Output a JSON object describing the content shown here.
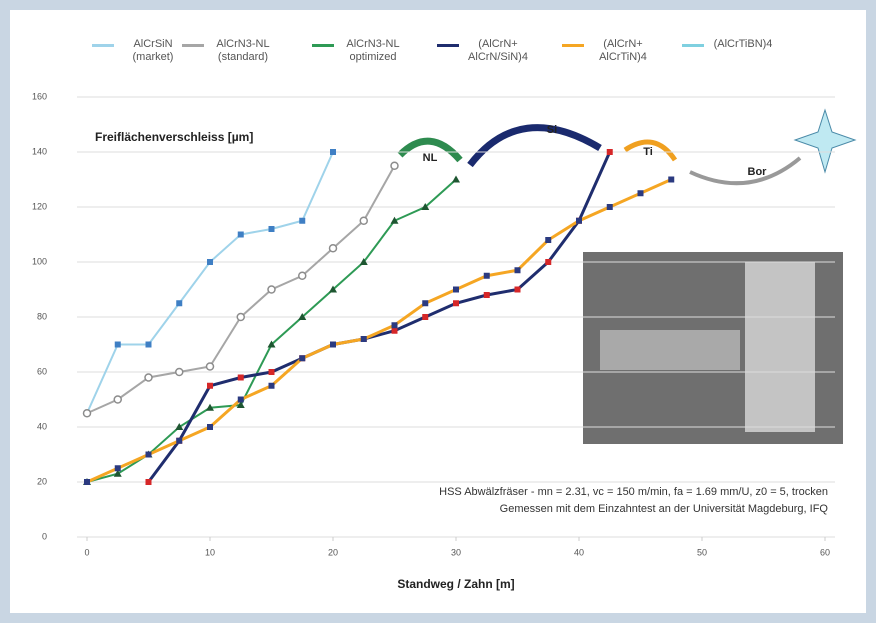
{
  "chart_data": {
    "type": "line",
    "y_label": "Freiflächenverschleiss [µm]",
    "x_label": "Standweg / Zahn [m]",
    "xlim": [
      0,
      60
    ],
    "xticks": [
      0,
      10,
      20,
      30,
      40,
      50,
      60
    ],
    "ylim": [
      0,
      160
    ],
    "yticks": [
      0,
      20,
      40,
      60,
      80,
      100,
      120,
      140,
      160
    ],
    "grid": true,
    "series": [
      {
        "name": "AlCrSiN (market)",
        "color": "#9fd3ea",
        "marker_color": "#3f7fc4",
        "marker": "square",
        "x": [
          0,
          2.5,
          5,
          7.5,
          10,
          12.5,
          15,
          17.5,
          20
        ],
        "values": [
          45,
          70,
          70,
          85,
          100,
          110,
          112,
          115,
          140
        ]
      },
      {
        "name": "AlCrN3-NL (standard)",
        "color": "#a6a6a6",
        "marker_color": "#8c8c8c",
        "marker": "circle",
        "x": [
          0,
          2.5,
          5,
          7.5,
          10,
          12.5,
          15,
          17.5,
          20,
          22.5,
          25
        ],
        "values": [
          45,
          50,
          58,
          60,
          62,
          80,
          90,
          95,
          105,
          115,
          135
        ]
      },
      {
        "name": "AlCrN3-NL optimized",
        "color": "#2e9a55",
        "marker_color": "#1e5631",
        "marker": "triangle",
        "x": [
          0,
          2.5,
          5,
          7.5,
          10,
          12.5,
          15,
          17.5,
          20,
          22.5,
          25,
          27.5,
          30
        ],
        "values": [
          20,
          23,
          30,
          40,
          47,
          48,
          70,
          80,
          90,
          100,
          115,
          120,
          130
        ]
      },
      {
        "name": "(AlCrN+ AlCrN/SiN)4",
        "color": "#1f2d6e",
        "marker_color": "#d62728",
        "marker": "square",
        "x": [
          5,
          7.5,
          10,
          12.5,
          15,
          17.5,
          20,
          22.5,
          25,
          27.5,
          30,
          32.5,
          35,
          37.5,
          40,
          42.5
        ],
        "values": [
          20,
          35,
          55,
          58,
          60,
          65,
          70,
          72,
          75,
          80,
          85,
          88,
          90,
          100,
          115,
          140
        ]
      },
      {
        "name": "(AlCrN+ AlCrTiN)4",
        "color": "#f5a623",
        "marker_color": "#2b3a80",
        "marker": "square",
        "x": [
          0,
          2.5,
          5,
          7.5,
          10,
          12.5,
          15,
          17.5,
          20,
          22.5,
          25,
          27.5,
          30,
          32.5,
          35,
          37.5,
          40,
          42.5,
          45,
          47.5
        ],
        "values": [
          20,
          25,
          30,
          35,
          40,
          50,
          55,
          65,
          70,
          72,
          77,
          85,
          90,
          95,
          97,
          108,
          115,
          120,
          125,
          130
        ]
      },
      {
        "name": "(AlCrTiBN)4",
        "color": "#7fd0e0",
        "marker_color": "#7fd0e0",
        "marker": "none",
        "x": [],
        "values": []
      }
    ],
    "arrow_labels": [
      "NL",
      "Si",
      "Ti",
      "Bor"
    ],
    "notes": [
      "HSS Abwälzfräser - mn = 2.31, vc = 150 m/min, fa = 1.69 mm/U, z0 = 5, trocken",
      "Gemessen mit dem Einzahntest an der Universität Magdeburg, IFQ"
    ]
  }
}
